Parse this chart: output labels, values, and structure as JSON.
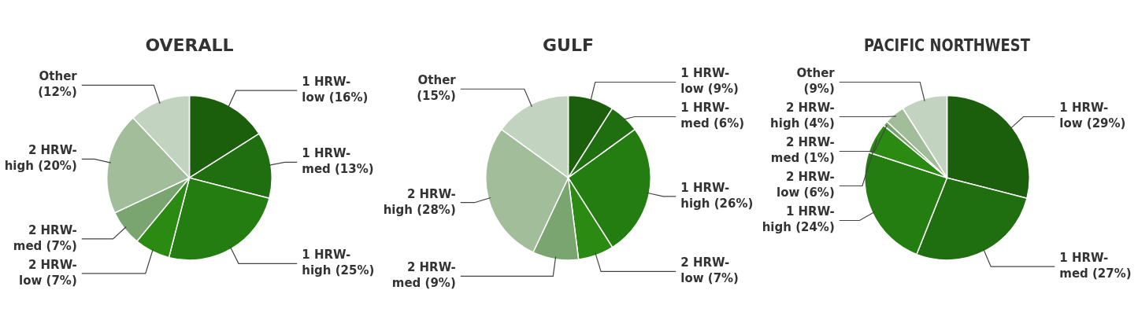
{
  "chart_data": [
    {
      "type": "pie",
      "title": "OVERALL",
      "categories": [
        "1 HRW-low (16%)",
        "1 HRW-med (13%)",
        "1 HRW-high (25%)",
        "2 HRW-low (7%)",
        "2 HRW-med (7%)",
        "2 HRW-high (20%)",
        "Other (12%)"
      ],
      "values": [
        16,
        13,
        25,
        7,
        7,
        20,
        12
      ],
      "colors": [
        "#1b5e0b",
        "#1f6e0f",
        "#247d10",
        "#2a8a12",
        "#7aa570",
        "#a1bd99",
        "#c2d4bf"
      ],
      "legend": false
    },
    {
      "type": "pie",
      "title": "GULF",
      "categories": [
        "1 HRW-low (9%)",
        "1 HRW-med (6%)",
        "1 HRW-high (26%)",
        "2 HRW-low (7%)",
        "2 HRW-med (9%)",
        "2 HRW-high (28%)",
        "Other (15%)"
      ],
      "values": [
        9,
        6,
        26,
        7,
        9,
        28,
        15
      ],
      "colors": [
        "#1b5e0b",
        "#1f6e0f",
        "#247d10",
        "#2a8a12",
        "#7aa570",
        "#a1bd99",
        "#c2d4bf"
      ],
      "legend": false
    },
    {
      "type": "pie",
      "title": "PACIFIC NORTHWEST",
      "categories": [
        "1 HRW-low (29%)",
        "1 HRW-med (27%)",
        "1 HRW-high (24%)",
        "2 HRW-low (6%)",
        "2 HRW-med (1%)",
        "2 HRW-high (4%)",
        "Other (9%)"
      ],
      "values": [
        29,
        27,
        24,
        6,
        1,
        4,
        9
      ],
      "colors": [
        "#1b5e0b",
        "#1f6e0f",
        "#247d10",
        "#2a8a12",
        "#7aa570",
        "#a1bd99",
        "#c2d4bf"
      ],
      "legend": false
    }
  ]
}
